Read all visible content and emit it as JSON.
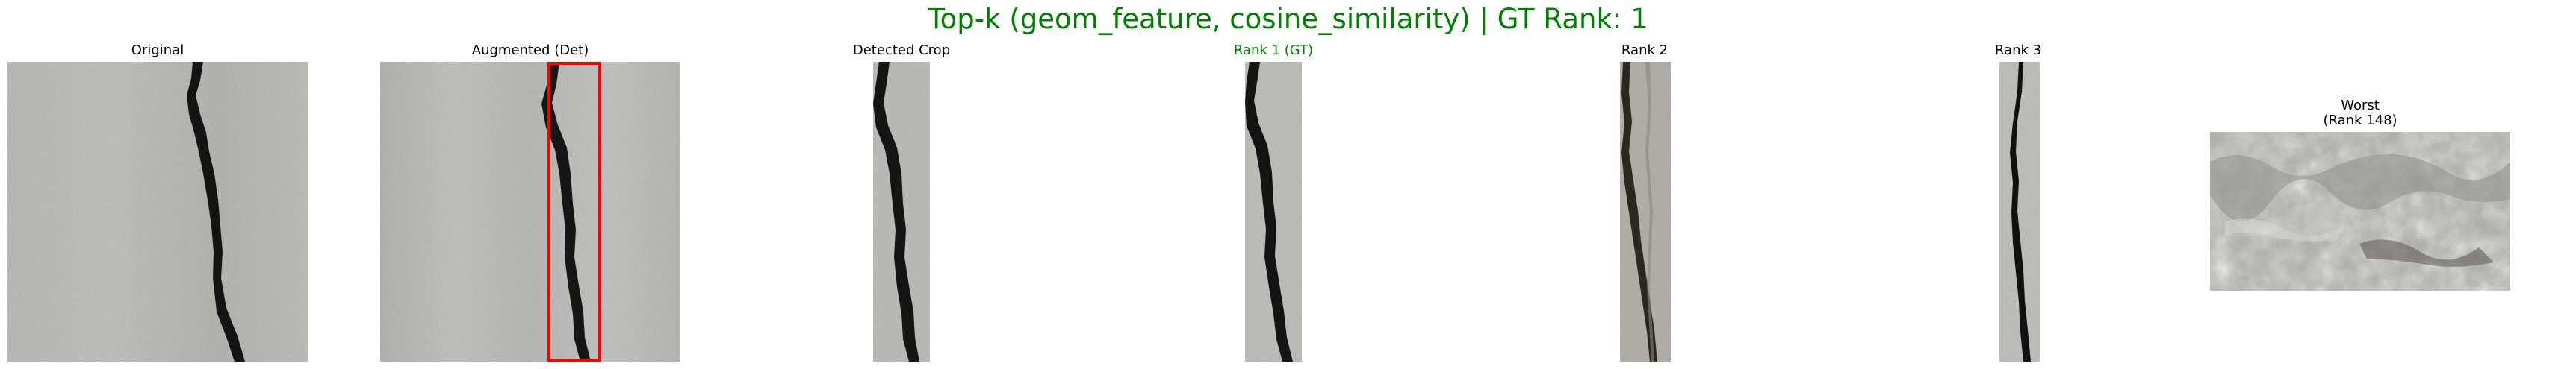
{
  "figure": {
    "title": "Top-k (geom_feature, cosine_similarity) | GT Rank: 1",
    "title_color": "#008000"
  },
  "panels": [
    {
      "key": "original",
      "title": "Original",
      "title_color": "#000000"
    },
    {
      "key": "augmented",
      "title": "Augmented (Det)",
      "title_color": "#000000",
      "detection_box_color": "#ff0000"
    },
    {
      "key": "detected",
      "title": "Detected Crop",
      "title_color": "#000000"
    },
    {
      "key": "rank1",
      "title": "Rank 1 (GT)",
      "title_color": "#008000"
    },
    {
      "key": "rank2",
      "title": "Rank 2",
      "title_color": "#000000"
    },
    {
      "key": "rank3",
      "title": "Rank 3",
      "title_color": "#000000"
    },
    {
      "key": "worst",
      "title_line1": "Worst",
      "title_line2": "(Rank 148)",
      "title_color": "#000000"
    }
  ]
}
